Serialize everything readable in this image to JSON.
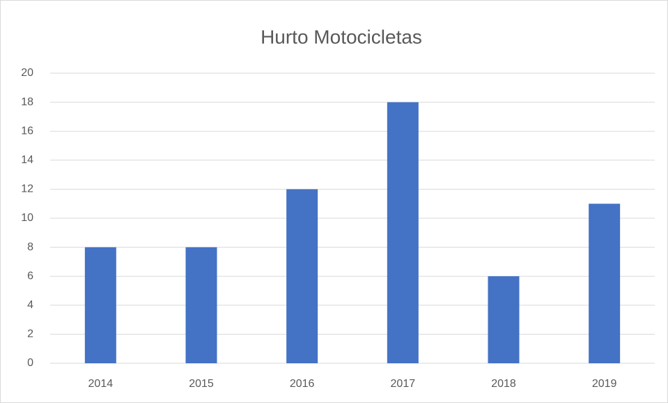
{
  "chart_data": {
    "type": "bar",
    "title": "Hurto Motocicletas",
    "categories": [
      "2014",
      "2015",
      "2016",
      "2017",
      "2018",
      "2019"
    ],
    "values": [
      8,
      8,
      12,
      18,
      6,
      11
    ],
    "color": "#4472c4",
    "ylim": [
      0,
      20
    ],
    "yticks": [
      0,
      2,
      4,
      6,
      8,
      10,
      12,
      14,
      16,
      18,
      20
    ],
    "grid": true
  }
}
